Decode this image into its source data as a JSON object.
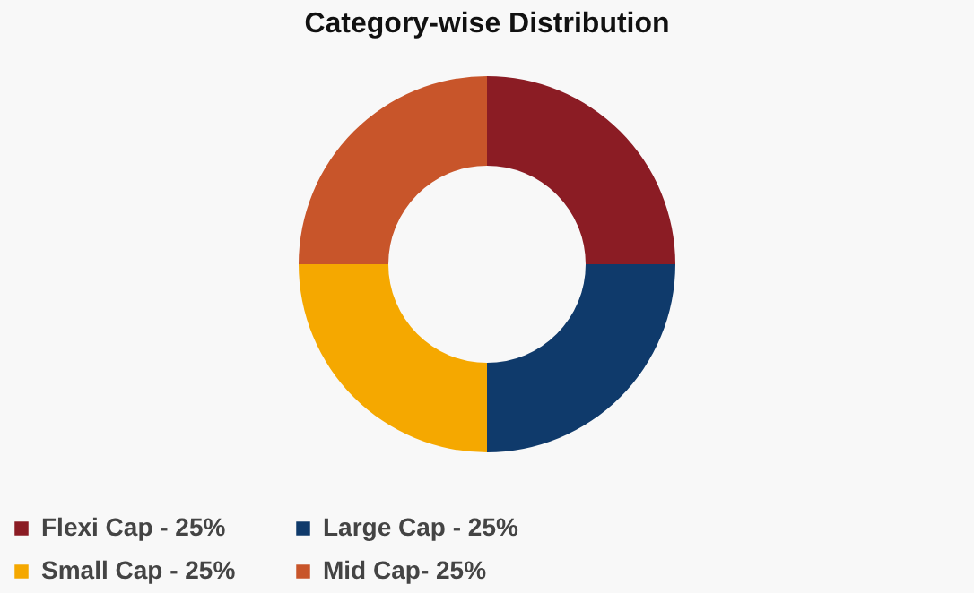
{
  "chart_data": {
    "type": "donut",
    "title": "Category-wise Distribution",
    "categories": [
      "Flexi Cap - 25%",
      "Large Cap -  25%",
      "Small Cap - 25%",
      "Mid Cap- 25%"
    ],
    "values": [
      25,
      25,
      25,
      25
    ],
    "colors": [
      "#8b1c24",
      "#0f3a6b",
      "#f5a800",
      "#c8552a"
    ],
    "legend": "bottom"
  }
}
